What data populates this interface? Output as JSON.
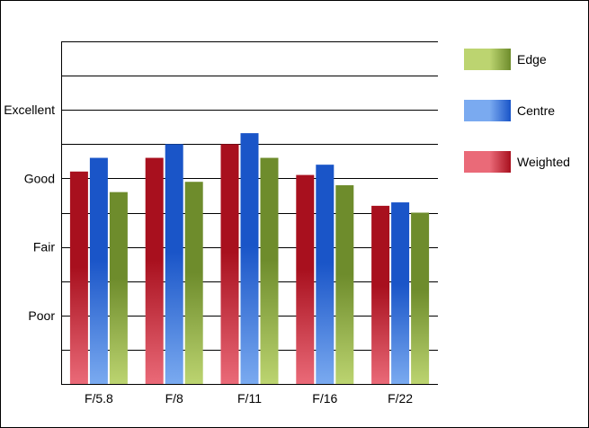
{
  "chart_data": {
    "type": "bar",
    "categories": [
      "F/5.8",
      "F/8",
      "F/11",
      "F/16",
      "F/22"
    ],
    "y_tick_labels": [
      "Poor",
      "Fair",
      "Good",
      "Excellent"
    ],
    "y_tick_values": [
      1,
      2,
      3,
      4
    ],
    "ylim": [
      0,
      5
    ],
    "grid": true,
    "legend_position": "right",
    "series": [
      {
        "name": "Weighted",
        "values": [
          3.1,
          3.3,
          3.5,
          3.05,
          2.6
        ],
        "color_dark": "#a8101e",
        "color_light": "#ea6a78"
      },
      {
        "name": "Centre",
        "values": [
          3.3,
          3.5,
          3.66,
          3.2,
          2.65
        ],
        "color_dark": "#1a55c8",
        "color_light": "#7aaaf0"
      },
      {
        "name": "Edge",
        "values": [
          2.8,
          2.95,
          3.3,
          2.9,
          2.5
        ],
        "color_dark": "#6e8c2c",
        "color_light": "#bcd470"
      }
    ],
    "legend_order": [
      "Edge",
      "Centre",
      "Weighted"
    ]
  }
}
